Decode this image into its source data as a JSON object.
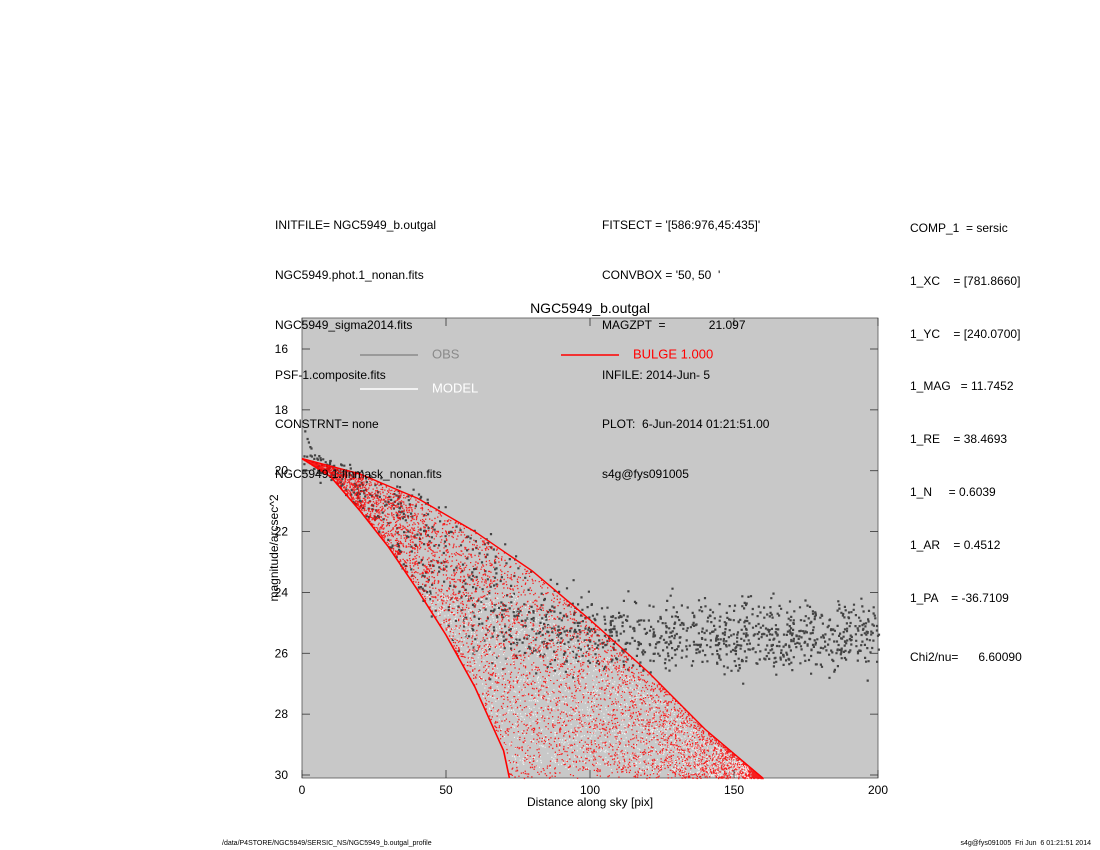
{
  "header_left": [
    "INITFILE= NGC5949_b.outgal",
    "NGC5949.phot.1_nonan.fits",
    "NGC5949_sigma2014.fits",
    "PSF-1.composite.fits",
    "CONSTRNT= none",
    "NGC5949.1.finmask_nonan.fits"
  ],
  "header_mid": [
    "FITSECT = '[586:976,45:435]'",
    "CONVBOX = '50, 50  '",
    "MAGZPT  =             21.097",
    "INFILE: 2014-Jun- 5",
    "PLOT:  6-Jun-2014 01:21:51.00",
    "s4g@fys091005"
  ],
  "params": [
    "COMP_1  = sersic",
    "1_XC    = [781.8660]",
    "1_YC    = [240.0700]",
    "1_MAG   = 11.7452",
    "1_RE    = 38.4693",
    "1_N     = 0.6039",
    "1_AR    = 0.4512",
    "1_PA    = -36.7109"
  ],
  "chi2": "Chi2/nu=      6.60090",
  "footer_left": "/data/P4STORE/NGC5949/SERSIC_NS/NGC5949_b.outgal_profile",
  "footer_right": "s4g@fys091005  Fri Jun  6 01:21:51 2014",
  "colors": {
    "plot_bg": "#c8c8c8",
    "obs": "#444444",
    "model": "#ffffff",
    "bulge": "#ff0000",
    "legend_obs": "#8a8a8a"
  },
  "chart_data": {
    "type": "scatter",
    "title": "NGC5949_b.outgal",
    "xlabel": "Distance along sky [pix]",
    "ylabel": "magnitude/arcsec^2",
    "xlim": [
      0,
      200
    ],
    "ylim": [
      30,
      15
    ],
    "y_inverted": true,
    "xticks": [
      "0",
      "50",
      "100",
      "150",
      "200"
    ],
    "yticks": [
      "16",
      "18",
      "20",
      "22",
      "24",
      "26",
      "28",
      "30"
    ],
    "grid": false,
    "legend": [
      {
        "name": "OBS",
        "color": "#8a8a8a"
      },
      {
        "name": "MODEL",
        "color": "#ffffff"
      },
      {
        "name": "BULGE  1.000",
        "color": "#ff0000"
      }
    ],
    "series": [
      {
        "name": "BULGE  1.000",
        "note_model": "sersic",
        "n": 0.6039,
        "re": 38.4693,
        "mu0": 19.6,
        "outer_envelope": [
          [
            0,
            19.6
          ],
          [
            20,
            20.1
          ],
          [
            40,
            20.9
          ],
          [
            60,
            22.0
          ],
          [
            80,
            23.3
          ],
          [
            100,
            24.9
          ],
          [
            120,
            26.6
          ],
          [
            140,
            28.5
          ],
          [
            160,
            30.1
          ]
        ],
        "inner_envelope": [
          [
            0,
            19.6
          ],
          [
            10,
            20.2
          ],
          [
            20,
            21.3
          ],
          [
            30,
            22.5
          ],
          [
            40,
            23.9
          ],
          [
            50,
            25.4
          ],
          [
            60,
            27.1
          ],
          [
            70,
            29.2
          ],
          [
            72,
            30.1
          ]
        ]
      },
      {
        "name": "OBS",
        "sample": [
          [
            0,
            18.5
          ],
          [
            2,
            19.2
          ],
          [
            5,
            19.7
          ],
          [
            10,
            20.0
          ],
          [
            20,
            20.3
          ],
          [
            30,
            20.5
          ],
          [
            40,
            21.0
          ],
          [
            50,
            21.6
          ],
          [
            60,
            22.3
          ],
          [
            70,
            22.5
          ],
          [
            80,
            23.0
          ],
          [
            90,
            23.6
          ],
          [
            100,
            24.1
          ],
          [
            110,
            24.4
          ],
          [
            120,
            24.8
          ],
          [
            140,
            25.2
          ],
          [
            160,
            25.5
          ],
          [
            180,
            25.6
          ],
          [
            200,
            25.5
          ]
        ]
      }
    ]
  }
}
